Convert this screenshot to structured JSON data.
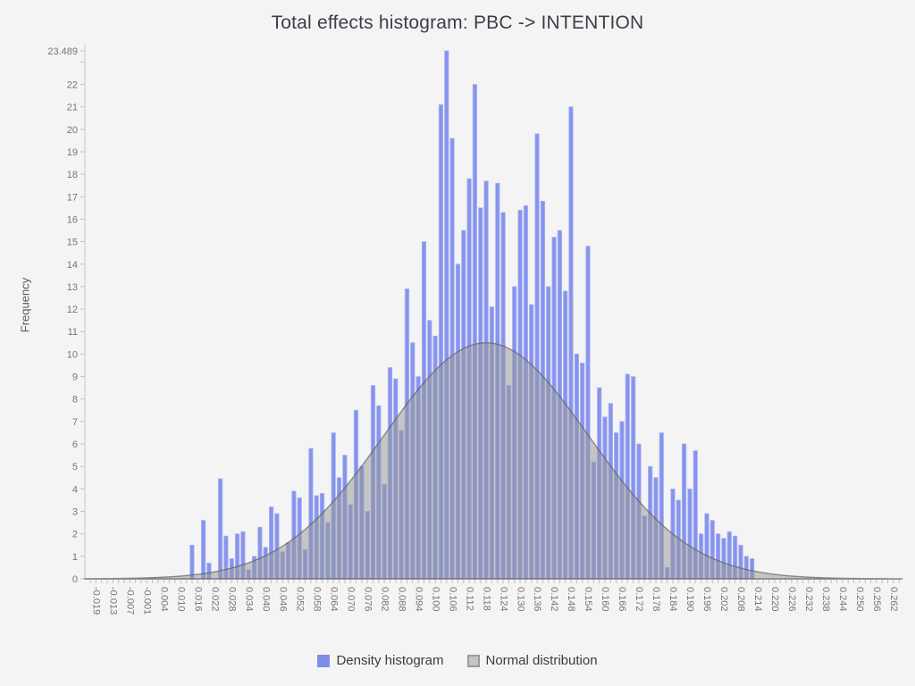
{
  "chart_data": {
    "type": "bar",
    "title": "Total effects histogram: PBC -> INTENTION",
    "xlabel": "",
    "ylabel": "Frequency",
    "ylim": [
      0,
      23.489
    ],
    "y_ticks": [
      0,
      1,
      2,
      3,
      4,
      5,
      6,
      7,
      8,
      9,
      10,
      11,
      12,
      13,
      14,
      15,
      16,
      17,
      18,
      19,
      20,
      21,
      22
    ],
    "y_top_label": "23.489",
    "grid": "off",
    "legend_position": "bottom",
    "x_tick_labels": [
      "-0.019",
      "-0.013",
      "-0.007",
      "-0.001",
      "0.004",
      "0.010",
      "0.016",
      "0.022",
      "0.028",
      "0.034",
      "0.040",
      "0.046",
      "0.052",
      "0.058",
      "0.064",
      "0.070",
      "0.076",
      "0.082",
      "0.088",
      "0.094",
      "0.100",
      "0.106",
      "0.112",
      "0.118",
      "0.124",
      "0.130",
      "0.136",
      "0.142",
      "0.148",
      "0.154",
      "0.160",
      "0.166",
      "0.172",
      "0.178",
      "0.184",
      "0.190",
      "0.196",
      "0.202",
      "0.208",
      "0.214",
      "0.220",
      "0.226",
      "0.232",
      "0.238",
      "0.244",
      "0.250",
      "0.256",
      "0.262"
    ],
    "bins_per_label": 3,
    "values": [
      0,
      0,
      0,
      0,
      0,
      0,
      0,
      0,
      0,
      0,
      0,
      0,
      0,
      0,
      0,
      0,
      0,
      0,
      1.5,
      0,
      2.6,
      0.7,
      0,
      4.45,
      1.9,
      0.9,
      2,
      2.1,
      0.4,
      1,
      2.3,
      1.4,
      3.2,
      2.9,
      1.2,
      1.6,
      3.9,
      3.6,
      1.3,
      5.8,
      3.7,
      3.8,
      2.5,
      6.5,
      4.5,
      5.5,
      3.3,
      7.5,
      5,
      3,
      8.6,
      7.7,
      4.2,
      9.4,
      8.9,
      6.6,
      12.9,
      10.5,
      9,
      15,
      11.5,
      10.8,
      21.1,
      23.489,
      19.6,
      14,
      15.5,
      17.8,
      22,
      16.5,
      17.7,
      12.1,
      17.6,
      16.3,
      8.6,
      13,
      16.4,
      16.6,
      12.2,
      19.8,
      16.8,
      13,
      15.2,
      15.5,
      12.8,
      21,
      10,
      9.6,
      14.8,
      5.2,
      8.5,
      7.2,
      7.8,
      6.5,
      7,
      9.1,
      9,
      6,
      2.8,
      5,
      4.5,
      6.5,
      0.5,
      4,
      3.5,
      6,
      4,
      5.7,
      2,
      2.9,
      2.6,
      2,
      1.8,
      2.1,
      1.9,
      1.5,
      1,
      0.9,
      0,
      0,
      0,
      0,
      0,
      0,
      0,
      0,
      0,
      0,
      0,
      0,
      0,
      0,
      0,
      0,
      0,
      0,
      0,
      0,
      0,
      0,
      0,
      0,
      0,
      0
    ],
    "normal_curve": {
      "peak": 10.5,
      "mean_bin": 70,
      "sigma_bins": 18.1
    },
    "series": [
      {
        "name": "Density histogram",
        "type": "bar",
        "color": "#8794ed"
      },
      {
        "name": "Normal distribution",
        "type": "area-curve",
        "color": "#c4c4c4"
      }
    ],
    "legend": [
      {
        "label": "Density histogram",
        "swatch_fill": "#7f8dea",
        "swatch_border": "#7f8dea"
      },
      {
        "label": "Normal distribution",
        "swatch_fill": "#c4c4c4",
        "swatch_border": "#9b9b9b"
      }
    ]
  },
  "colors": {
    "background": "#f4f4f4",
    "bar": "#8794ed",
    "bar_edge": "#a9b2f3",
    "curve_fill": "rgba(150,150,150,0.5)",
    "curve_stroke": "rgba(90,90,90,0.65)",
    "axis": "#c9c9c9",
    "tick": "#c0c0c0",
    "tick_text": "#757575",
    "title_text": "#3a3e47"
  }
}
